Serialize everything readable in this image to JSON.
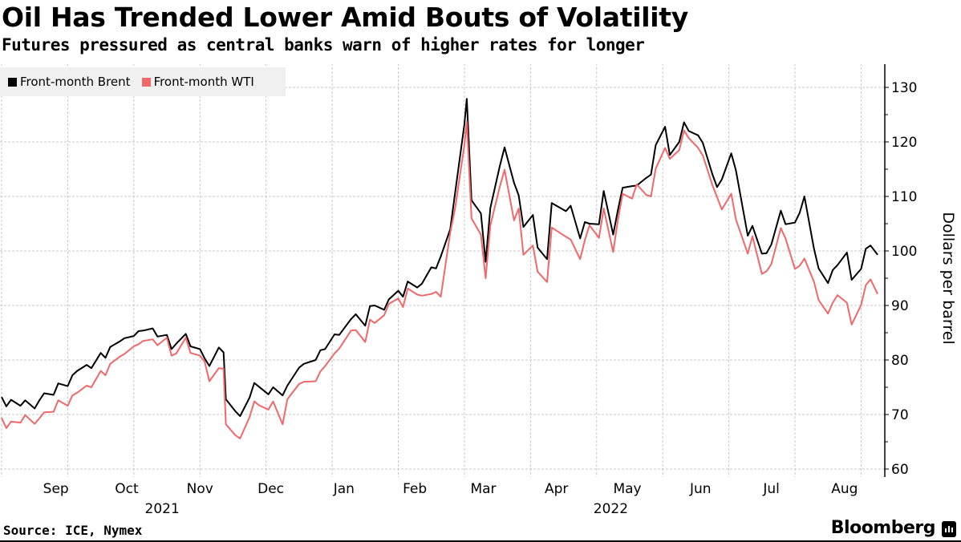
{
  "header": {
    "title": "Oil Has Trended Lower Amid Bouts of Volatility",
    "subtitle": "Futures pressured as central banks warn of higher rates for longer"
  },
  "footer": {
    "source": "Source: ICE, Nymex",
    "brand": "Bloomberg",
    "brand_icon": "bloomberg-chart-icon"
  },
  "colors": {
    "brent": "#000000",
    "wti": "#f0686a",
    "grid": "#c8c8c8",
    "legend_bg": "#f0f0f0"
  },
  "chart_data": {
    "type": "line",
    "title": "Oil Has Trended Lower Amid Bouts of Volatility",
    "subtitle": "Futures pressured as central banks warn of higher rates for longer",
    "xlabel": "",
    "ylabel": "Dollars per barrel",
    "ylim": [
      60,
      130
    ],
    "yticks": [
      60,
      70,
      80,
      90,
      100,
      110,
      120,
      130
    ],
    "xlim": [
      "2021-08-23",
      "2022-08-30"
    ],
    "grid": true,
    "legend_position": "top-left",
    "x_tick_labels": [
      {
        "label": "Sep",
        "date": "2021-09-15"
      },
      {
        "label": "Oct",
        "date": "2021-10-15"
      },
      {
        "label": "Nov",
        "date": "2021-11-15"
      },
      {
        "label": "Dec",
        "date": "2021-12-15"
      },
      {
        "label": "Jan",
        "date": "2022-01-15"
      },
      {
        "label": "Feb",
        "date": "2022-02-14"
      },
      {
        "label": "Mar",
        "date": "2022-03-15"
      },
      {
        "label": "Apr",
        "date": "2022-04-15"
      },
      {
        "label": "May",
        "date": "2022-05-15"
      },
      {
        "label": "Jun",
        "date": "2022-06-15"
      },
      {
        "label": "Jul",
        "date": "2022-07-15"
      },
      {
        "label": "Aug",
        "date": "2022-08-15"
      }
    ],
    "year_labels": [
      {
        "label": "2021",
        "date": "2021-10-30"
      },
      {
        "label": "2022",
        "date": "2022-05-08"
      }
    ],
    "gridline_dates": [
      "2021-08-23",
      "2021-09-20",
      "2021-10-18",
      "2021-11-15",
      "2021-12-13",
      "2022-01-10",
      "2022-02-07",
      "2022-03-07",
      "2022-04-04",
      "2022-05-02",
      "2022-05-30",
      "2022-06-27",
      "2022-07-25",
      "2022-08-22"
    ],
    "x": [
      "2021-08-23",
      "2021-08-25",
      "2021-08-27",
      "2021-08-31",
      "2021-09-02",
      "2021-09-06",
      "2021-09-08",
      "2021-09-10",
      "2021-09-14",
      "2021-09-16",
      "2021-09-20",
      "2021-09-22",
      "2021-09-24",
      "2021-09-28",
      "2021-09-30",
      "2021-10-04",
      "2021-10-06",
      "2021-10-08",
      "2021-10-12",
      "2021-10-14",
      "2021-10-18",
      "2021-10-20",
      "2021-10-22",
      "2021-10-26",
      "2021-10-28",
      "2021-11-01",
      "2021-11-03",
      "2021-11-05",
      "2021-11-09",
      "2021-11-11",
      "2021-11-15",
      "2021-11-17",
      "2021-11-19",
      "2021-11-23",
      "2021-11-25",
      "2021-11-26",
      "2021-11-30",
      "2021-12-02",
      "2021-12-06",
      "2021-12-08",
      "2021-12-10",
      "2021-12-14",
      "2021-12-16",
      "2021-12-20",
      "2021-12-22",
      "2021-12-27",
      "2021-12-29",
      "2022-01-03",
      "2022-01-05",
      "2022-01-07",
      "2022-01-11",
      "2022-01-13",
      "2022-01-18",
      "2022-01-20",
      "2022-01-24",
      "2022-01-26",
      "2022-01-28",
      "2022-02-01",
      "2022-02-03",
      "2022-02-07",
      "2022-02-09",
      "2022-02-11",
      "2022-02-15",
      "2022-02-17",
      "2022-02-21",
      "2022-02-23",
      "2022-02-25",
      "2022-03-01",
      "2022-03-03",
      "2022-03-07",
      "2022-03-08",
      "2022-03-10",
      "2022-03-14",
      "2022-03-16",
      "2022-03-18",
      "2022-03-22",
      "2022-03-24",
      "2022-03-28",
      "2022-03-30",
      "2022-04-01",
      "2022-04-05",
      "2022-04-07",
      "2022-04-11",
      "2022-04-13",
      "2022-04-19",
      "2022-04-21",
      "2022-04-25",
      "2022-04-27",
      "2022-04-29",
      "2022-05-03",
      "2022-05-05",
      "2022-05-09",
      "2022-05-11",
      "2022-05-13",
      "2022-05-17",
      "2022-05-19",
      "2022-05-23",
      "2022-05-25",
      "2022-05-27",
      "2022-05-31",
      "2022-06-02",
      "2022-06-06",
      "2022-06-08",
      "2022-06-10",
      "2022-06-14",
      "2022-06-16",
      "2022-06-20",
      "2022-06-22",
      "2022-06-24",
      "2022-06-28",
      "2022-06-30",
      "2022-07-05",
      "2022-07-07",
      "2022-07-11",
      "2022-07-13",
      "2022-07-15",
      "2022-07-19",
      "2022-07-21",
      "2022-07-25",
      "2022-07-27",
      "2022-07-29",
      "2022-08-02",
      "2022-08-04",
      "2022-08-08",
      "2022-08-10",
      "2022-08-12",
      "2022-08-16",
      "2022-08-18",
      "2022-08-22",
      "2022-08-24",
      "2022-08-26",
      "2022-08-29"
    ],
    "series": [
      {
        "name": "Front-month Brent",
        "color": "#000000",
        "values": [
          73.2,
          71.5,
          72.7,
          71.6,
          72.6,
          71.1,
          72.6,
          73.9,
          73.6,
          75.7,
          75.2,
          77.2,
          78.0,
          79.1,
          78.5,
          81.3,
          80.4,
          82.4,
          83.4,
          84.0,
          84.4,
          85.3,
          85.4,
          85.8,
          84.3,
          84.6,
          82.0,
          83.0,
          84.8,
          82.5,
          82.0,
          80.3,
          78.9,
          82.3,
          81.4,
          72.8,
          70.6,
          69.7,
          73.1,
          75.8,
          75.1,
          73.7,
          75.0,
          73.5,
          75.3,
          78.6,
          79.3,
          80.0,
          81.8,
          82.0,
          84.7,
          84.6,
          87.5,
          88.4,
          86.3,
          89.9,
          90.0,
          89.2,
          91.1,
          92.7,
          91.6,
          94.4,
          93.3,
          94.0,
          97.0,
          96.8,
          99.0,
          104.0,
          110.5,
          123.2,
          127.9,
          109.3,
          106.9,
          98.0,
          107.9,
          115.6,
          119.0,
          112.5,
          110.2,
          104.4,
          106.6,
          100.6,
          98.5,
          108.8,
          107.3,
          108.3,
          102.3,
          105.3,
          105.0,
          104.9,
          111.0,
          103.0,
          107.5,
          111.6,
          111.9,
          112.0,
          113.4,
          114.0,
          119.4,
          122.8,
          117.6,
          120.0,
          123.6,
          122.0,
          121.2,
          119.8,
          114.1,
          111.7,
          113.1,
          117.9,
          114.8,
          102.8,
          104.6,
          99.5,
          99.6,
          101.2,
          107.4,
          104.9,
          105.2,
          107.0,
          110.0,
          100.5,
          96.8,
          94.1,
          96.5,
          97.4,
          99.7,
          94.7,
          96.7,
          100.4,
          101.0,
          99.3,
          100.7
        ]
      },
      {
        "name": "Front-month WTI",
        "color": "#f0686a",
        "values": [
          69.4,
          67.5,
          68.7,
          68.5,
          69.9,
          68.3,
          69.3,
          70.4,
          70.5,
          72.6,
          71.6,
          73.5,
          74.0,
          75.3,
          75.0,
          78.0,
          77.2,
          79.3,
          80.6,
          81.1,
          82.5,
          82.9,
          83.5,
          83.8,
          82.7,
          84.1,
          80.8,
          81.2,
          84.1,
          81.3,
          80.8,
          79.7,
          76.1,
          78.5,
          78.4,
          68.2,
          66.2,
          65.6,
          69.5,
          72.4,
          71.7,
          70.9,
          72.4,
          68.2,
          72.8,
          75.6,
          76.0,
          76.1,
          77.9,
          78.9,
          81.2,
          82.1,
          85.4,
          85.5,
          83.3,
          87.4,
          86.8,
          88.2,
          90.3,
          91.3,
          89.7,
          93.1,
          92.0,
          91.8,
          92.1,
          92.5,
          91.6,
          103.4,
          107.7,
          119.4,
          123.7,
          106.0,
          103.0,
          95.0,
          104.7,
          111.8,
          114.9,
          105.6,
          107.8,
          99.3,
          101.0,
          96.2,
          94.3,
          104.3,
          102.6,
          102.1,
          98.5,
          102.0,
          104.7,
          102.4,
          107.8,
          99.8,
          105.7,
          110.5,
          109.6,
          112.2,
          110.3,
          110.0,
          115.1,
          118.9,
          116.9,
          118.5,
          122.1,
          120.7,
          118.9,
          117.5,
          112.1,
          109.9,
          107.6,
          110.5,
          105.8,
          99.5,
          102.7,
          95.8,
          96.3,
          97.6,
          104.2,
          102.3,
          96.7,
          97.3,
          98.6,
          94.4,
          91.0,
          88.5,
          90.5,
          91.9,
          90.5,
          86.5,
          90.1,
          93.7,
          94.8,
          92.1,
          93.0
        ]
      }
    ]
  },
  "legend": {
    "items": [
      {
        "label": "Front-month Brent",
        "color": "#000000"
      },
      {
        "label": "Front-month WTI",
        "color": "#f0686a"
      }
    ]
  }
}
